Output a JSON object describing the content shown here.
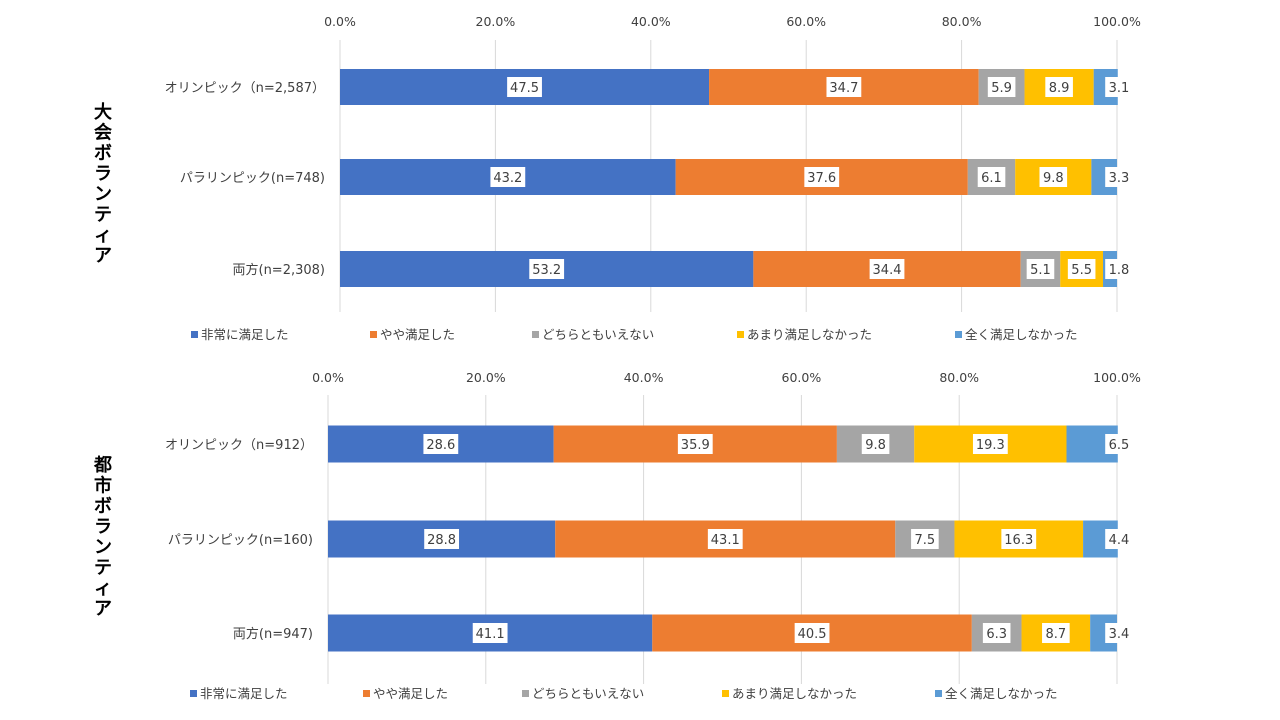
{
  "colors": {
    "非常に満足した": "#4472C4",
    "やや満足した": "#ED7D31",
    "どちらともいえない": "#A5A5A5",
    "あまり満足しなかった": "#FFC000",
    "全く満足しなかった": "#5B9BD5"
  },
  "chart_data": [
    {
      "type": "bar",
      "orientation": "horizontal",
      "stacked": "100%",
      "group_label": "大会ボランティア",
      "categories": [
        "オリンピック（n=2,587）",
        "パラリンピック(n=748)",
        "両方(n=2,308)"
      ],
      "xlim": [
        0,
        100
      ],
      "x_ticks": [
        "0.0%",
        "20.0%",
        "40.0%",
        "60.0%",
        "80.0%",
        "100.0%"
      ],
      "grid": true,
      "legend_position": "bottom",
      "series": [
        {
          "name": "非常に満足した",
          "values": [
            47.5,
            43.2,
            53.2
          ]
        },
        {
          "name": "やや満足した",
          "values": [
            34.7,
            37.6,
            34.4
          ]
        },
        {
          "name": "どちらともいえない",
          "values": [
            5.9,
            6.1,
            5.1
          ]
        },
        {
          "name": "あまり満足しなかった",
          "values": [
            8.9,
            9.8,
            5.5
          ]
        },
        {
          "name": "全く満足しなかった",
          "values": [
            3.1,
            3.3,
            1.8
          ]
        }
      ]
    },
    {
      "type": "bar",
      "orientation": "horizontal",
      "stacked": "100%",
      "group_label": "都市ボランティア",
      "categories": [
        "オリンピック（n=912）",
        "パラリンピック(n=160)",
        "両方(n=947)"
      ],
      "xlim": [
        0,
        100
      ],
      "x_ticks": [
        "0.0%",
        "20.0%",
        "40.0%",
        "60.0%",
        "80.0%",
        "100.0%"
      ],
      "grid": true,
      "legend_position": "bottom",
      "series": [
        {
          "name": "非常に満足した",
          "values": [
            28.6,
            28.8,
            41.1
          ]
        },
        {
          "name": "やや満足した",
          "values": [
            35.9,
            43.1,
            40.5
          ]
        },
        {
          "name": "どちらともいえない",
          "values": [
            9.8,
            7.5,
            6.3
          ]
        },
        {
          "name": "あまり満足しなかった",
          "values": [
            19.3,
            16.3,
            8.7
          ]
        },
        {
          "name": "全く満足しなかった",
          "values": [
            6.5,
            4.4,
            3.4
          ]
        }
      ]
    }
  ]
}
